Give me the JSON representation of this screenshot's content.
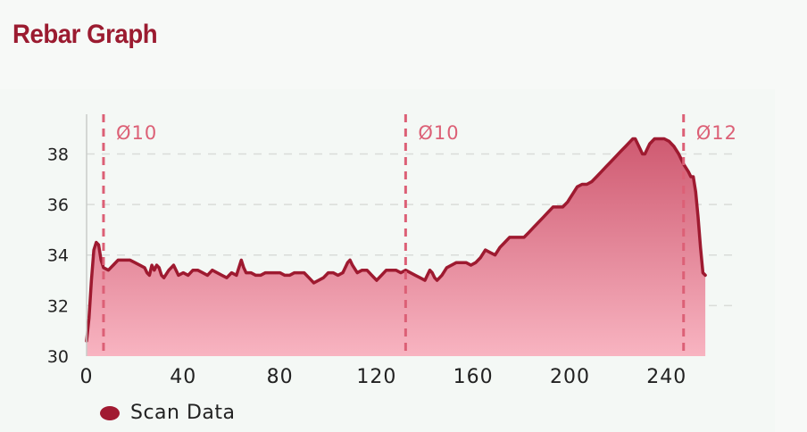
{
  "header": {
    "title": "Rebar Graph"
  },
  "legend": {
    "label": "Scan Data",
    "color": "#a11a31"
  },
  "colors": {
    "line": "#9e1a30",
    "fill_top": "#cf5a71",
    "fill_bottom": "#f8b4c1",
    "marker": "#dc6076",
    "grid": "#d9dcd9"
  },
  "chart_data": {
    "type": "area",
    "xlim": [
      0,
      270
    ],
    "ylim": [
      30,
      39.5
    ],
    "x_ticks": [
      0,
      40,
      80,
      120,
      160,
      200,
      240
    ],
    "y_ticks": [
      30,
      32,
      34,
      36,
      38
    ],
    "grid": "horizontal dashed",
    "legend_placement": "bottom-left",
    "markers": [
      {
        "x": 7,
        "label": "Ø10"
      },
      {
        "x": 132,
        "label": "Ø10"
      },
      {
        "x": 247,
        "label": "Ø12"
      }
    ],
    "series": [
      {
        "name": "Scan Data",
        "points": [
          [
            0,
            30.6
          ],
          [
            1,
            31.5
          ],
          [
            2,
            33.0
          ],
          [
            3,
            34.2
          ],
          [
            4,
            34.5
          ],
          [
            5,
            34.4
          ],
          [
            6,
            33.8
          ],
          [
            7,
            33.5
          ],
          [
            9,
            33.4
          ],
          [
            11,
            33.6
          ],
          [
            13,
            33.8
          ],
          [
            16,
            33.8
          ],
          [
            18,
            33.8
          ],
          [
            20,
            33.7
          ],
          [
            22,
            33.6
          ],
          [
            24,
            33.5
          ],
          [
            25,
            33.3
          ],
          [
            26,
            33.2
          ],
          [
            27,
            33.6
          ],
          [
            28,
            33.4
          ],
          [
            29,
            33.6
          ],
          [
            30,
            33.5
          ],
          [
            31,
            33.2
          ],
          [
            32,
            33.1
          ],
          [
            34,
            33.4
          ],
          [
            36,
            33.6
          ],
          [
            38,
            33.2
          ],
          [
            40,
            33.3
          ],
          [
            42,
            33.2
          ],
          [
            44,
            33.4
          ],
          [
            46,
            33.4
          ],
          [
            48,
            33.3
          ],
          [
            50,
            33.2
          ],
          [
            52,
            33.4
          ],
          [
            54,
            33.3
          ],
          [
            56,
            33.2
          ],
          [
            58,
            33.1
          ],
          [
            60,
            33.3
          ],
          [
            62,
            33.2
          ],
          [
            64,
            33.8
          ],
          [
            65,
            33.5
          ],
          [
            66,
            33.3
          ],
          [
            68,
            33.3
          ],
          [
            70,
            33.2
          ],
          [
            72,
            33.2
          ],
          [
            74,
            33.3
          ],
          [
            76,
            33.3
          ],
          [
            78,
            33.3
          ],
          [
            80,
            33.3
          ],
          [
            82,
            33.2
          ],
          [
            84,
            33.2
          ],
          [
            86,
            33.3
          ],
          [
            88,
            33.3
          ],
          [
            90,
            33.3
          ],
          [
            92,
            33.1
          ],
          [
            94,
            32.9
          ],
          [
            96,
            33.0
          ],
          [
            98,
            33.1
          ],
          [
            100,
            33.3
          ],
          [
            102,
            33.3
          ],
          [
            104,
            33.2
          ],
          [
            106,
            33.3
          ],
          [
            108,
            33.7
          ],
          [
            109,
            33.8
          ],
          [
            110,
            33.6
          ],
          [
            112,
            33.3
          ],
          [
            114,
            33.4
          ],
          [
            116,
            33.4
          ],
          [
            118,
            33.2
          ],
          [
            120,
            33.0
          ],
          [
            122,
            33.2
          ],
          [
            124,
            33.4
          ],
          [
            126,
            33.4
          ],
          [
            128,
            33.4
          ],
          [
            130,
            33.3
          ],
          [
            132,
            33.4
          ],
          [
            134,
            33.3
          ],
          [
            136,
            33.2
          ],
          [
            138,
            33.1
          ],
          [
            140,
            33.0
          ],
          [
            141,
            33.2
          ],
          [
            142,
            33.4
          ],
          [
            143,
            33.3
          ],
          [
            144,
            33.1
          ],
          [
            145,
            33.0
          ],
          [
            147,
            33.2
          ],
          [
            149,
            33.5
          ],
          [
            151,
            33.6
          ],
          [
            153,
            33.7
          ],
          [
            155,
            33.7
          ],
          [
            157,
            33.7
          ],
          [
            159,
            33.6
          ],
          [
            161,
            33.7
          ],
          [
            163,
            33.9
          ],
          [
            165,
            34.2
          ],
          [
            167,
            34.1
          ],
          [
            169,
            34.0
          ],
          [
            171,
            34.3
          ],
          [
            173,
            34.5
          ],
          [
            175,
            34.7
          ],
          [
            177,
            34.7
          ],
          [
            179,
            34.7
          ],
          [
            181,
            34.7
          ],
          [
            183,
            34.9
          ],
          [
            185,
            35.1
          ],
          [
            187,
            35.3
          ],
          [
            189,
            35.5
          ],
          [
            191,
            35.7
          ],
          [
            193,
            35.9
          ],
          [
            195,
            35.9
          ],
          [
            197,
            35.9
          ],
          [
            199,
            36.1
          ],
          [
            201,
            36.4
          ],
          [
            203,
            36.7
          ],
          [
            205,
            36.8
          ],
          [
            207,
            36.8
          ],
          [
            209,
            36.9
          ],
          [
            211,
            37.1
          ],
          [
            213,
            37.3
          ],
          [
            215,
            37.5
          ],
          [
            217,
            37.7
          ],
          [
            219,
            37.9
          ],
          [
            221,
            38.1
          ],
          [
            223,
            38.3
          ],
          [
            225,
            38.5
          ],
          [
            226,
            38.6
          ],
          [
            227,
            38.6
          ],
          [
            228,
            38.4
          ],
          [
            229,
            38.2
          ],
          [
            230,
            38.0
          ],
          [
            231,
            38.0
          ],
          [
            232,
            38.2
          ],
          [
            233,
            38.4
          ],
          [
            235,
            38.6
          ],
          [
            237,
            38.6
          ],
          [
            239,
            38.6
          ],
          [
            241,
            38.5
          ],
          [
            243,
            38.3
          ],
          [
            245,
            38.0
          ],
          [
            247,
            37.6
          ],
          [
            249,
            37.3
          ],
          [
            250,
            37.1
          ],
          [
            251,
            37.1
          ],
          [
            252,
            36.5
          ],
          [
            253,
            35.5
          ],
          [
            254,
            34.3
          ],
          [
            255,
            33.3
          ],
          [
            256,
            33.2
          ]
        ]
      }
    ]
  }
}
